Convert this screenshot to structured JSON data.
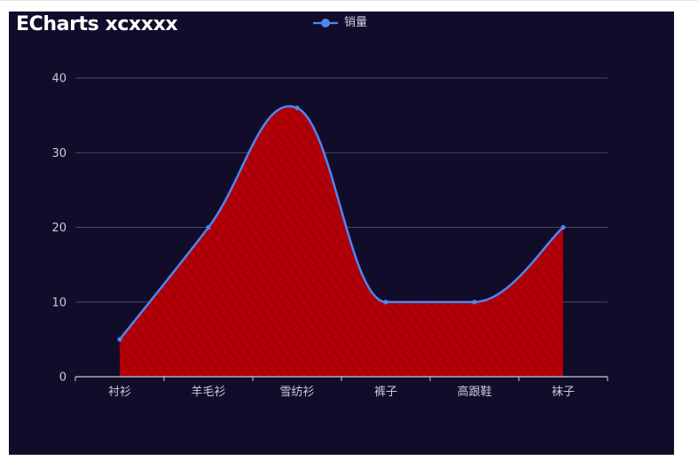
{
  "chart_data": {
    "type": "area",
    "title": "ECharts xcxxxx",
    "categories": [
      "衬衫",
      "羊毛衫",
      "雪纺衫",
      "裤子",
      "高跟鞋",
      "袜子"
    ],
    "series": [
      {
        "name": "销量",
        "values": [
          5,
          20,
          36,
          10,
          10,
          20
        ]
      }
    ],
    "ylim": [
      0,
      40
    ],
    "yticks": [
      0,
      10,
      20,
      30,
      40
    ],
    "smooth": true,
    "grid": true,
    "legend_position": "top-center",
    "colors": {
      "background": "#100c2a",
      "line": "#4e86f0",
      "area_fill": "#b30008",
      "area_hatch": "#8c0006",
      "grid": "#4a4760",
      "axis": "#c8cbd9"
    }
  }
}
